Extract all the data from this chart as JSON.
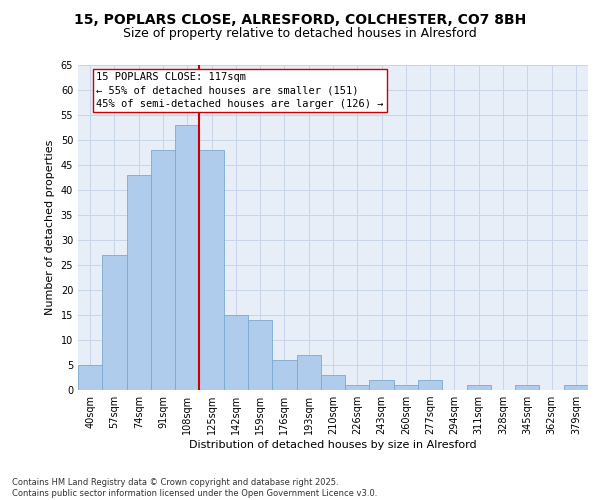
{
  "title_line1": "15, POPLARS CLOSE, ALRESFORD, COLCHESTER, CO7 8BH",
  "title_line2": "Size of property relative to detached houses in Alresford",
  "xlabel": "Distribution of detached houses by size in Alresford",
  "ylabel": "Number of detached properties",
  "categories": [
    "40sqm",
    "57sqm",
    "74sqm",
    "91sqm",
    "108sqm",
    "125sqm",
    "142sqm",
    "159sqm",
    "176sqm",
    "193sqm",
    "210sqm",
    "226sqm",
    "243sqm",
    "260sqm",
    "277sqm",
    "294sqm",
    "311sqm",
    "328sqm",
    "345sqm",
    "362sqm",
    "379sqm"
  ],
  "values": [
    5,
    27,
    43,
    48,
    53,
    48,
    15,
    14,
    6,
    7,
    3,
    1,
    2,
    1,
    2,
    0,
    1,
    0,
    1,
    0,
    1
  ],
  "bar_color": "#b0ccec",
  "bar_edge_color": "#7aaad0",
  "red_line_x": 4.5,
  "red_line_color": "#cc0000",
  "annotation_line1": "15 POPLARS CLOSE: 117sqm",
  "annotation_line2": "← 55% of detached houses are smaller (151)",
  "annotation_line3": "45% of semi-detached houses are larger (126) →",
  "ylim": [
    0,
    65
  ],
  "yticks": [
    0,
    5,
    10,
    15,
    20,
    25,
    30,
    35,
    40,
    45,
    50,
    55,
    60,
    65
  ],
  "grid_color": "#c8d4e8",
  "bg_color": "#e8eef8",
  "footer_line1": "Contains HM Land Registry data © Crown copyright and database right 2025.",
  "footer_line2": "Contains public sector information licensed under the Open Government Licence v3.0.",
  "title_fontsize": 10,
  "subtitle_fontsize": 9,
  "ylabel_fontsize": 8,
  "xlabel_fontsize": 8,
  "tick_fontsize": 7,
  "annot_fontsize": 7.5,
  "footer_fontsize": 6
}
